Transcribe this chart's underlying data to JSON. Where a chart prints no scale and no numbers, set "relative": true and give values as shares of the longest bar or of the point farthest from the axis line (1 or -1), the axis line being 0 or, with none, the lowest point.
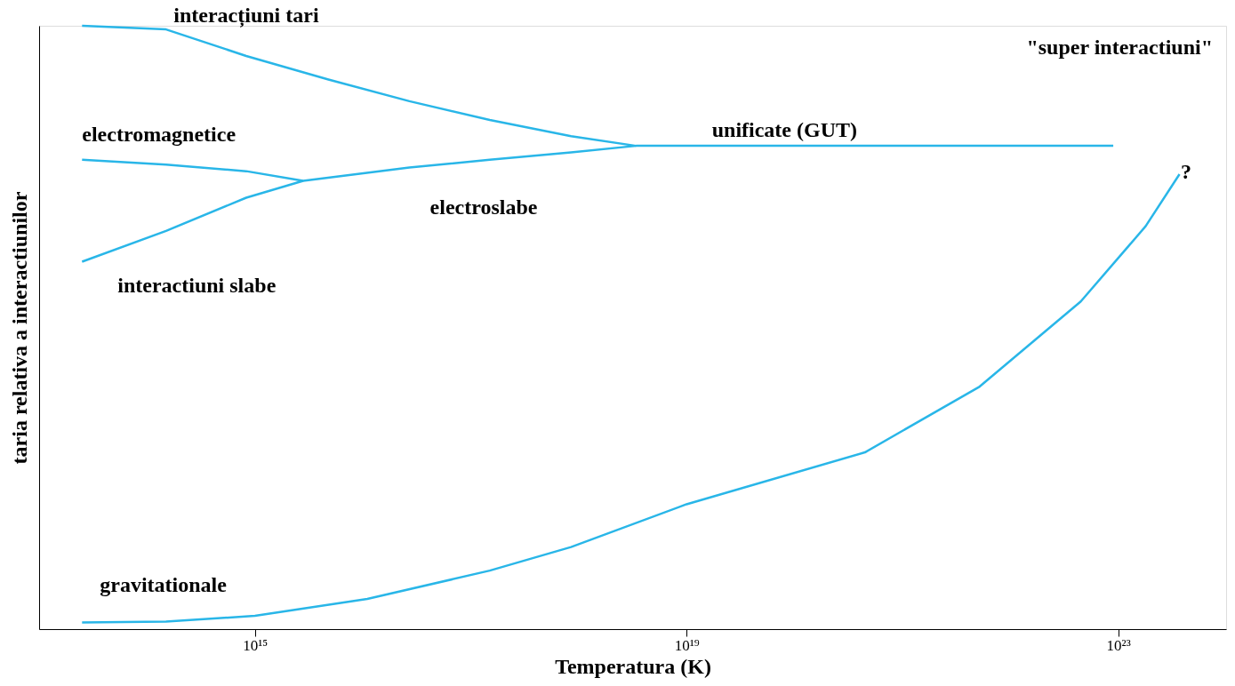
{
  "chart_data": {
    "type": "line",
    "relative": true,
    "log": "x",
    "grid": false,
    "legend": false,
    "marker": "none",
    "line_style": "solid",
    "xlabel": "Temperatura (K)",
    "ylabel": "taria relativa a interactiunilor",
    "xlim": [
      10000000000000.0,
      1e+24
    ],
    "xticks": [
      {
        "value": 1000000000000000.0,
        "label": "10¹⁵"
      },
      {
        "value": 1e+19,
        "label": "10¹⁹"
      },
      {
        "value": 1e+23,
        "label": "10²³"
      }
    ],
    "series": [
      {
        "name": "interacțiuni tari",
        "color": "#29b6e8",
        "x": [
          25000000000000.0,
          150000000000000.0,
          830000000000000.0,
          4800000000000000.0,
          2.7e+16,
          1.5e+17,
          8.5e+17,
          3.4e+18,
          1e+19,
          9e+22
        ],
        "values": [
          1.0,
          0.994,
          0.95,
          0.911,
          0.875,
          0.844,
          0.817,
          0.801,
          0.801,
          0.801
        ]
      },
      {
        "name": "electromagnetice",
        "color": "#29b6e8",
        "x": [
          25000000000000.0,
          150000000000000.0,
          830000000000000.0,
          2800000000000000.0,
          2.7e+16,
          1.5e+17,
          8.5e+17,
          3.4e+18
        ],
        "values": [
          0.778,
          0.77,
          0.759,
          0.743,
          0.765,
          0.778,
          0.79,
          0.801
        ]
      },
      {
        "name": "interactiuni slabe",
        "color": "#29b6e8",
        "x": [
          25000000000000.0,
          150000000000000.0,
          830000000000000.0,
          2800000000000000.0
        ],
        "values": [
          0.609,
          0.66,
          0.715,
          0.743
        ]
      },
      {
        "name": "gravitationale",
        "color": "#29b6e8",
        "x": [
          25000000000000.0,
          150000000000000.0,
          1000000000000000.0,
          1.1e+16,
          1.5e+17,
          8.5e+17,
          1e+19,
          4.5e+20,
          5.2e+21,
          4.5e+22,
          1.8e+23,
          3.7e+23
        ],
        "values": [
          0.011,
          0.0125,
          0.022,
          0.05,
          0.097,
          0.136,
          0.207,
          0.293,
          0.402,
          0.543,
          0.668,
          0.754
        ]
      }
    ],
    "annotations": [
      "electroslabe",
      "unificate (GUT)",
      "\"super interactiuni\"",
      "?"
    ]
  }
}
